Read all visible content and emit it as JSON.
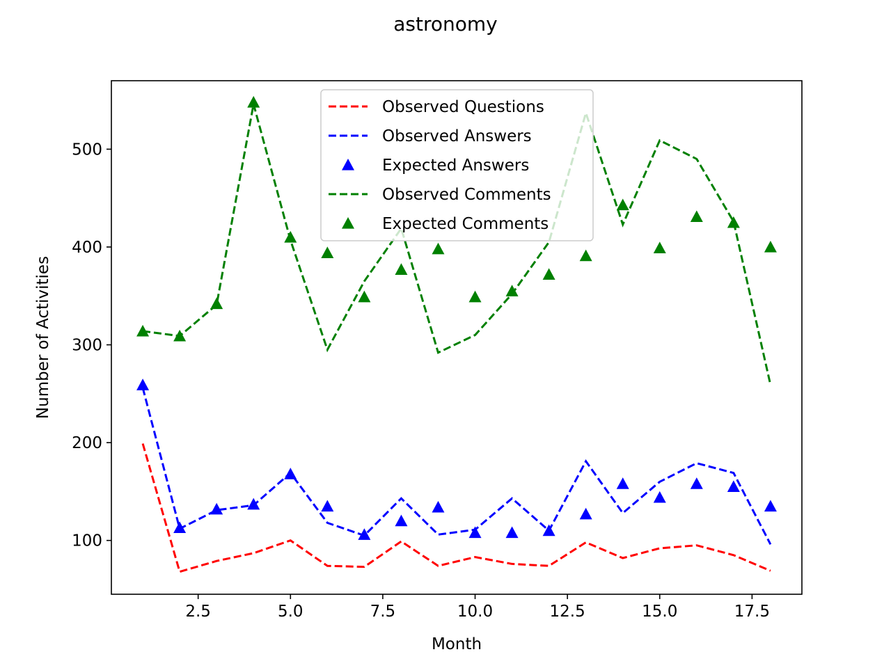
{
  "chart_data": {
    "type": "line",
    "title": "astronomy",
    "xlabel": "Month",
    "ylabel": "Number of Activities",
    "xlim": [
      0.15,
      18.85
    ],
    "ylim": [
      45,
      570
    ],
    "xticks": [
      2.5,
      5.0,
      7.5,
      10.0,
      12.5,
      15.0,
      17.5
    ],
    "xtick_labels": [
      "2.5",
      "5.0",
      "7.5",
      "10.0",
      "12.5",
      "15.0",
      "17.5"
    ],
    "yticks": [
      100,
      200,
      300,
      400,
      500
    ],
    "ytick_labels": [
      "100",
      "200",
      "300",
      "400",
      "500"
    ],
    "grid": false,
    "legend_position": "top-center",
    "x": [
      1,
      2,
      3,
      4,
      5,
      6,
      7,
      8,
      9,
      10,
      11,
      12,
      13,
      14,
      15,
      16,
      17,
      18
    ],
    "series": [
      {
        "name": "Observed Questions",
        "style": "dashed-line",
        "color": "#ff0000",
        "values": [
          199,
          68,
          79,
          87,
          100,
          74,
          73,
          99,
          74,
          83,
          76,
          74,
          98,
          82,
          92,
          95,
          85,
          69
        ]
      },
      {
        "name": "Observed Answers",
        "style": "dashed-line",
        "color": "#0000ff",
        "values": [
          256,
          112,
          131,
          136,
          169,
          118,
          105,
          143,
          106,
          111,
          143,
          110,
          181,
          128,
          160,
          179,
          169,
          96
        ]
      },
      {
        "name": "Expected Answers",
        "style": "triangle-marker",
        "color": "#0000ff",
        "values": [
          259,
          113,
          132,
          137,
          168,
          135,
          106,
          120,
          134,
          108,
          108,
          110,
          127,
          158,
          144,
          158,
          155,
          135
        ]
      },
      {
        "name": "Observed Comments",
        "style": "dashed-line",
        "color": "#008000",
        "values": [
          314,
          309,
          341,
          546,
          407,
          295,
          365,
          419,
          292,
          310,
          352,
          405,
          537,
          423,
          509,
          490,
          426,
          259
        ]
      },
      {
        "name": "Expected Comments",
        "style": "triangle-marker",
        "color": "#008000",
        "values": [
          314,
          309,
          342,
          548,
          410,
          394,
          349,
          377,
          398,
          349,
          355,
          372,
          391,
          443,
          399,
          431,
          425,
          400
        ]
      }
    ]
  }
}
